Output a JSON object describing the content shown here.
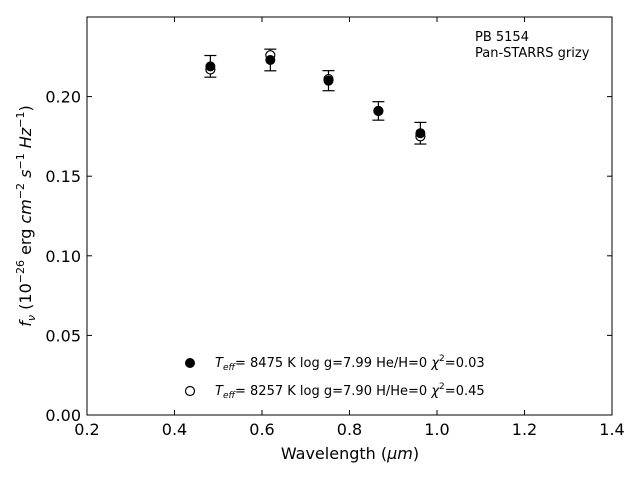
{
  "chart_data": {
    "type": "scatter",
    "xlabel_text": "Wavelength (",
    "xlabel_unit": "μm",
    "xlabel_close": ")",
    "ylabel": "f_ν (10^−26 erg cm^−2 s^−1 Hz^−1)",
    "xlim": [
      0.2,
      1.4
    ],
    "ylim": [
      0.0,
      0.25
    ],
    "xticks": [
      0.2,
      0.4,
      0.6,
      0.8,
      1.0,
      1.2,
      1.4
    ],
    "xtick_labels": [
      "0.2",
      "0.4",
      "0.6",
      "0.8",
      "1.0",
      "1.2",
      "1.4"
    ],
    "yticks": [
      0.0,
      0.05,
      0.1,
      0.15,
      0.2
    ],
    "ytick_labels": [
      "0.00",
      "0.05",
      "0.10",
      "0.15",
      "0.20"
    ],
    "annotation": [
      "PB 5154",
      "Pan-STARRS grizy"
    ],
    "observed": {
      "x": [
        0.482,
        0.619,
        0.752,
        0.866,
        0.962
      ],
      "y": [
        0.219,
        0.223,
        0.21,
        0.191,
        0.177
      ],
      "err": [
        0.0068,
        0.0068,
        0.0063,
        0.0058,
        0.0068
      ]
    },
    "series": [
      {
        "marker": "filled",
        "x": [
          0.482,
          0.619,
          0.752,
          0.866,
          0.962
        ],
        "y": [
          0.219,
          0.223,
          0.21,
          0.191,
          0.177
        ]
      },
      {
        "marker": "open",
        "x": [
          0.482,
          0.619,
          0.752,
          0.866,
          0.962
        ],
        "y": [
          0.217,
          0.226,
          0.211,
          0.191,
          0.175
        ]
      }
    ],
    "legend": [
      {
        "marker": "filled",
        "teff": "8475",
        "logg": "7.99",
        "comp": "He/H=0",
        "chi2": "0.03"
      },
      {
        "marker": "open",
        "teff": "8257",
        "logg": "7.90",
        "comp": "H/He=0",
        "chi2": "0.45"
      }
    ],
    "legend_placement": "lower-center",
    "grid": false
  }
}
